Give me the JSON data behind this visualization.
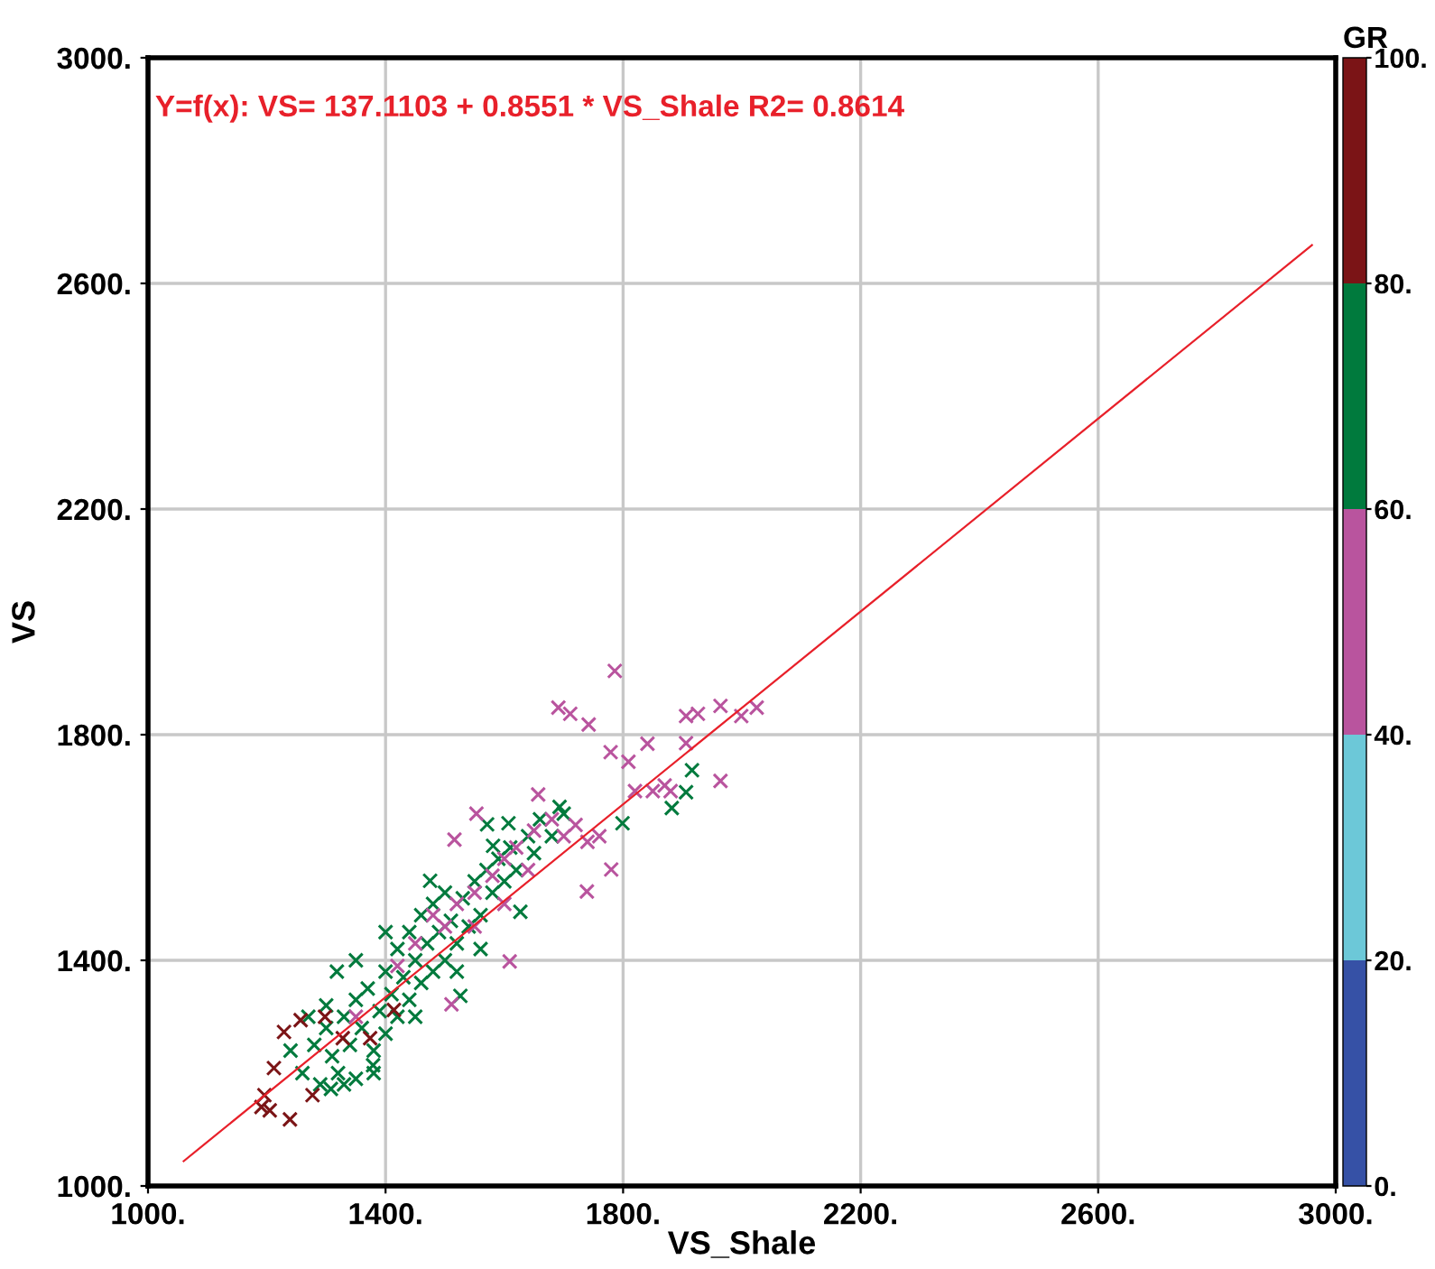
{
  "chart_data": {
    "type": "scatter",
    "xlabel": "VS_Shale",
    "ylabel": "VS",
    "clabel": "GR",
    "xlim": [
      1000,
      3000
    ],
    "ylim": [
      1000,
      3000
    ],
    "xticks": [
      {
        "value": 1000,
        "label": "1000."
      },
      {
        "value": 1400,
        "label": "1400."
      },
      {
        "value": 1800,
        "label": "1800."
      },
      {
        "value": 2200,
        "label": "2200."
      },
      {
        "value": 2600,
        "label": "2600."
      },
      {
        "value": 3000,
        "label": "3000."
      }
    ],
    "yticks": [
      {
        "value": 1000,
        "label": "1000."
      },
      {
        "value": 1400,
        "label": "1400."
      },
      {
        "value": 1800,
        "label": "1800."
      },
      {
        "value": 2200,
        "label": "2200."
      },
      {
        "value": 2600,
        "label": "2600."
      },
      {
        "value": 3000,
        "label": "3000."
      }
    ],
    "clim": [
      0,
      100
    ],
    "cticks": [
      {
        "value": 0,
        "label": "0."
      },
      {
        "value": 20,
        "label": "20."
      },
      {
        "value": 40,
        "label": "40."
      },
      {
        "value": 60,
        "label": "60."
      },
      {
        "value": 80,
        "label": "80."
      },
      {
        "value": 100,
        "label": "100."
      }
    ],
    "colors": [
      "#3651a6",
      "#6cc8d8",
      "#b9549e",
      "#007a3d",
      "#7b1416"
    ],
    "grid": true,
    "annotations": [
      "Y=f(x): VS= 137.1103 + 0.8551 * VS_Shale R2= 0.8614"
    ],
    "series": [
      {
        "type": "scatter",
        "marker": "cross",
        "x": [
          1260,
          1280,
          1290,
          1300,
          1310,
          1320,
          1330,
          1340,
          1350,
          1350,
          1360,
          1370,
          1380,
          1390,
          1400,
          1400,
          1410,
          1420,
          1420,
          1430,
          1440,
          1440,
          1450,
          1460,
          1460,
          1470,
          1480,
          1480,
          1490,
          1500,
          1500,
          1510,
          1520,
          1530,
          1540,
          1550,
          1560,
          1570,
          1580,
          1590,
          1600,
          1610,
          1620,
          1640,
          1650,
          1660,
          1680,
          1700,
          1240,
          1270,
          1330,
          1380,
          1450,
          1520,
          1560,
          1350,
          1400,
          1300,
          1882,
          1906,
          1916,
          1571,
          1607,
          1581,
          1627,
          1526,
          1379,
          1308,
          1318,
          1475,
          1693,
          1799
        ],
        "values": [
          1200,
          1250,
          1180,
          1280,
          1230,
          1200,
          1300,
          1250,
          1330,
          1190,
          1280,
          1350,
          1240,
          1310,
          1380,
          1270,
          1340,
          1420,
          1300,
          1370,
          1450,
          1330,
          1400,
          1480,
          1360,
          1430,
          1500,
          1380,
          1450,
          1520,
          1400,
          1470,
          1430,
          1510,
          1460,
          1540,
          1480,
          1560,
          1520,
          1580,
          1540,
          1600,
          1560,
          1620,
          1590,
          1650,
          1620,
          1660,
          1240,
          1300,
          1180,
          1200,
          1300,
          1380,
          1420,
          1400,
          1450,
          1320,
          1670,
          1698,
          1737,
          1641,
          1643,
          1603,
          1486,
          1337,
          1214,
          1172,
          1380,
          1541,
          1672,
          1643
        ],
        "color": "#007a3d"
      },
      {
        "type": "scatter",
        "marker": "cross",
        "x": [
          1480,
          1520,
          1550,
          1580,
          1600,
          1620,
          1650,
          1680,
          1700,
          1720,
          1740,
          1760,
          1870,
          1880,
          1850,
          1820,
          1600,
          1640,
          1500,
          1450,
          1420,
          1350,
          1550,
          1786,
          1691,
          1711,
          1742,
          1906,
          1926,
          1964,
          1999,
          2025,
          1841,
          1779,
          1809,
          1964,
          1657,
          1553,
          1516,
          1739,
          1780,
          1609,
          1511,
          1906
        ],
        "values": [
          1480,
          1500,
          1520,
          1550,
          1580,
          1600,
          1630,
          1650,
          1620,
          1640,
          1610,
          1620,
          1710,
          1700,
          1700,
          1700,
          1500,
          1560,
          1460,
          1430,
          1390,
          1300,
          1460,
          1913,
          1848,
          1837,
          1818,
          1833,
          1837,
          1851,
          1833,
          1848,
          1784,
          1769,
          1752,
          1718,
          1694,
          1660,
          1614,
          1522,
          1561,
          1398,
          1322,
          1785
        ],
        "color": "#b9549e"
      },
      {
        "type": "scatter",
        "marker": "cross",
        "x": [
          1205,
          1196,
          1212,
          1229,
          1239,
          1257,
          1298,
          1414,
          1374,
          1277,
          1191,
          1328
        ],
        "values": [
          1134,
          1161,
          1209,
          1273,
          1118,
          1294,
          1300,
          1312,
          1262,
          1161,
          1140,
          1262
        ],
        "color": "#7b1416"
      },
      {
        "type": "line",
        "marker": "none",
        "color": "#e8202a",
        "x": [
          1060,
          2960
        ],
        "values": [
          1044,
          2668
        ]
      }
    ]
  }
}
